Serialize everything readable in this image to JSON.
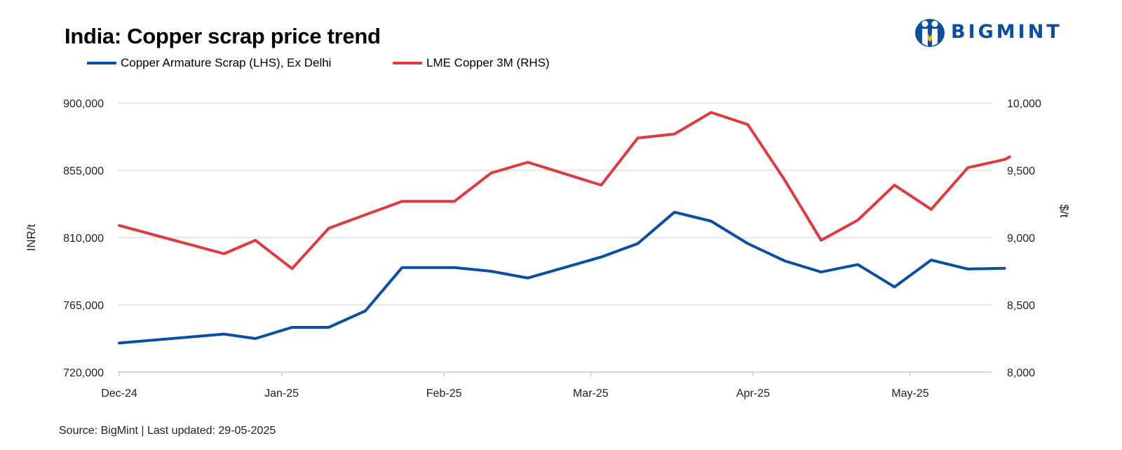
{
  "title": "India: Copper scrap price trend",
  "logo": {
    "text": "BIGMINT",
    "color": "#0a4fa3"
  },
  "source": "Source: BigMint | Last updated: 29-05-2025",
  "chart_data": {
    "type": "line",
    "title": "India: Copper scrap price trend",
    "ylabel_left": "INR/t",
    "ylabel_right": "$/t",
    "ylim_left": [
      720000,
      900000
    ],
    "ylim_right": [
      8000,
      10000
    ],
    "yticks_left": [
      "720,000",
      "765,000",
      "810,000",
      "855,000",
      "900,000"
    ],
    "yticks_right": [
      "8,000",
      "8,500",
      "9,000",
      "9,500",
      "10,000"
    ],
    "xticks": [
      "Dec-24",
      "Jan-25",
      "Feb-25",
      "Mar-25",
      "Apr-25",
      "May-25"
    ],
    "grid": true,
    "legend_position": "top-left",
    "series": [
      {
        "name": "Copper Armature Scrap (LHS), Ex Delhi",
        "axis": "left",
        "color": "#0a4fa3",
        "x": [
          "2024-12-01",
          "2024-12-21",
          "2024-12-27",
          "2025-01-03",
          "2025-01-10",
          "2025-01-17",
          "2025-01-24",
          "2025-02-03",
          "2025-02-10",
          "2025-02-17",
          "2025-03-03",
          "2025-03-10",
          "2025-03-17",
          "2025-03-24",
          "2025-03-31",
          "2025-04-07",
          "2025-04-14",
          "2025-04-21",
          "2025-04-28",
          "2025-05-05",
          "2025-05-12",
          "2025-05-19"
        ],
        "values": [
          739500,
          745500,
          742500,
          750000,
          750000,
          761000,
          790000,
          790000,
          787500,
          783000,
          797000,
          806000,
          827000,
          821000,
          806000,
          794500,
          787000,
          792000,
          777000,
          795000,
          789000,
          789500
        ]
      },
      {
        "name": "LME Copper 3M (RHS)",
        "axis": "right",
        "color": "#e03a3e",
        "x": [
          "2024-12-01",
          "2024-12-21",
          "2024-12-27",
          "2025-01-03",
          "2025-01-10",
          "2025-01-17",
          "2025-01-24",
          "2025-02-03",
          "2025-02-10",
          "2025-02-17",
          "2025-03-03",
          "2025-03-10",
          "2025-03-17",
          "2025-03-24",
          "2025-03-31",
          "2025-04-07",
          "2025-04-14",
          "2025-04-21",
          "2025-04-28",
          "2025-05-05",
          "2025-05-12",
          "2025-05-19",
          "2025-05-20"
        ],
        "values": [
          9090,
          8880,
          8980,
          8770,
          9070,
          9170,
          9270,
          9270,
          9480,
          9560,
          9390,
          9740,
          9770,
          9930,
          9840,
          9430,
          8980,
          9130,
          9390,
          9210,
          9520,
          9580,
          9600
        ]
      }
    ]
  }
}
